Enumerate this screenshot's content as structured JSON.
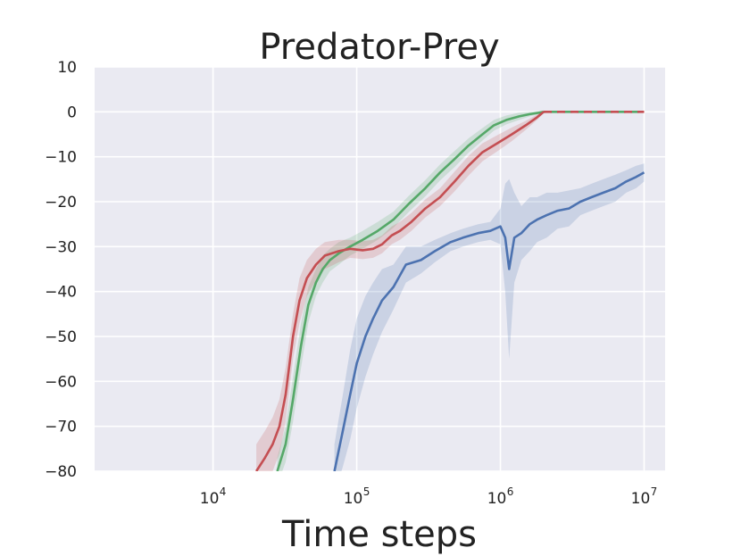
{
  "chart_data": {
    "type": "line",
    "title": "Predator-Prey",
    "xlabel": "Time steps",
    "ylabel": "",
    "xscale": "log",
    "xlim": [
      1500,
      14000000
    ],
    "ylim": [
      -80,
      10
    ],
    "grid": true,
    "yticks": [
      10,
      0,
      -10,
      -20,
      -30,
      -40,
      -50,
      -60,
      -70,
      -80
    ],
    "ytick_labels": [
      "10",
      "0",
      "−10",
      "−20",
      "−30",
      "−40",
      "−50",
      "−60",
      "−70",
      "−80"
    ],
    "xticks": [
      {
        "value": 10000,
        "base": "10",
        "exp": "4"
      },
      {
        "value": 100000,
        "base": "10",
        "exp": "5"
      },
      {
        "value": 1000000,
        "base": "10",
        "exp": "6"
      },
      {
        "value": 10000000,
        "base": "10",
        "exp": "7"
      }
    ],
    "colors": {
      "background": "#EAEAF2",
      "grid": "#FFFFFF",
      "green": "#55A868",
      "red": "#C44E52",
      "blue": "#4C72B0"
    },
    "series": [
      {
        "name": "green",
        "color": "#55A868",
        "x": [
          28000,
          32000,
          36000,
          41000,
          46000,
          52000,
          58000,
          65000,
          75000,
          90000,
          110000,
          140000,
          180000,
          230000,
          300000,
          380000,
          480000,
          600000,
          750000,
          900000,
          1100000,
          1350000,
          1600000,
          1850000,
          2000000
        ],
        "y": [
          -80,
          -74,
          -64,
          -52,
          -43,
          -38,
          -35,
          -33,
          -31.5,
          -30,
          -28.5,
          -26.5,
          -24,
          -20.5,
          -17,
          -13.5,
          -10.5,
          -7.5,
          -5,
          -3,
          -1.8,
          -1,
          -0.5,
          -0.2,
          0
        ],
        "band_half_width": [
          3,
          4,
          5,
          5,
          4,
          3,
          3,
          2.5,
          2.5,
          2,
          2,
          2,
          1.8,
          1.8,
          1.8,
          1.8,
          1.8,
          1.6,
          1.4,
          1.2,
          1,
          0.8,
          0.5,
          0.3,
          0.2
        ],
        "dashed_after": {
          "x": [
            2000000,
            10000000
          ],
          "y": [
            0,
            0
          ]
        }
      },
      {
        "name": "red",
        "color": "#C44E52",
        "x": [
          20000,
          23000,
          26000,
          29000,
          32000,
          36000,
          40000,
          45000,
          52000,
          60000,
          75000,
          90000,
          110000,
          130000,
          150000,
          175000,
          200000,
          240000,
          300000,
          380000,
          480000,
          600000,
          750000,
          950000,
          1200000,
          1500000,
          1800000,
          2000000
        ],
        "y": [
          -80,
          -77,
          -74,
          -70,
          -63,
          -50,
          -42,
          -37,
          -34,
          -32,
          -31,
          -30.5,
          -30.8,
          -30.5,
          -29.5,
          -27.5,
          -26.5,
          -24.5,
          -21.5,
          -19,
          -15.5,
          -12,
          -9,
          -7,
          -5,
          -3,
          -1.2,
          0
        ],
        "band_half_width": [
          6,
          6,
          6,
          6,
          6,
          5,
          5,
          4,
          3.5,
          3,
          2.5,
          2,
          2,
          2,
          2,
          2,
          2,
          2,
          2,
          2,
          2.2,
          2.2,
          2,
          1.8,
          1.5,
          1,
          0.6,
          0.3
        ],
        "dashed_after": {
          "x": [
            2000000,
            10000000
          ],
          "y": [
            0,
            0
          ]
        }
      },
      {
        "name": "blue",
        "color": "#4C72B0",
        "x": [
          70000,
          80000,
          90000,
          100000,
          115000,
          130000,
          150000,
          180000,
          220000,
          280000,
          350000,
          450000,
          550000,
          700000,
          850000,
          1000000,
          1080000,
          1150000,
          1250000,
          1400000,
          1600000,
          1800000,
          2100000,
          2500000,
          3000000,
          3600000,
          4300000,
          5200000,
          6300000,
          7500000,
          8800000,
          10000000
        ],
        "y": [
          -80,
          -71,
          -63,
          -56,
          -50,
          -46,
          -42,
          -39,
          -34,
          -33,
          -31,
          -29,
          -28,
          -27,
          -26.5,
          -25.5,
          -28,
          -35,
          -28,
          -27,
          -25,
          -24,
          -23,
          -22,
          -21.5,
          -20,
          -19,
          -18,
          -17,
          -15.5,
          -14.5,
          -13.5
        ],
        "band_half_width": [
          6,
          8,
          10,
          10,
          9,
          8,
          7,
          5,
          4,
          3,
          2.5,
          2,
          2,
          2,
          2,
          4,
          12,
          20,
          10,
          6,
          6,
          5,
          5,
          4,
          4,
          3,
          3,
          3,
          3,
          2.5,
          2.5,
          2
        ]
      }
    ]
  }
}
